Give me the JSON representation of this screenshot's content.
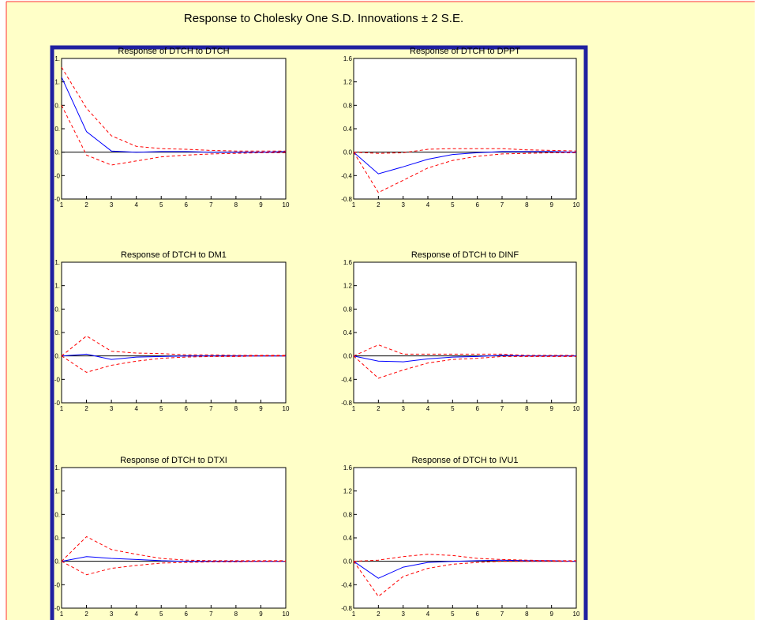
{
  "window": {
    "title": "Response to Cholesky One S.D. Innovations ± 2 S.E."
  },
  "colors": {
    "background": "#ffffc8",
    "frame": "#2020a0",
    "response_line": "#0000ff",
    "band_line": "#ff0000",
    "zero_line": "#000000",
    "top_rule": "#ff3030"
  },
  "chart_data": [
    {
      "type": "line",
      "title": "Response of DTCH to DTCH",
      "x": [
        1,
        2,
        3,
        4,
        5,
        6,
        7,
        8,
        9,
        10
      ],
      "ylim": [
        -0.8,
        1.6
      ],
      "yticks": [
        "-0",
        "-0",
        "0.",
        "0.",
        "0.",
        "1.",
        "1."
      ],
      "xticks": [
        "1",
        "2",
        "3",
        "4",
        "5",
        "6",
        "7",
        "8",
        "9",
        "10"
      ],
      "grid": false,
      "series": [
        {
          "role": "response",
          "values": [
            1.28,
            0.35,
            0.02,
            0.0,
            0.01,
            0.01,
            0.0,
            0.0,
            0.0,
            0.01
          ]
        },
        {
          "role": "upper",
          "values": [
            1.45,
            0.75,
            0.28,
            0.1,
            0.06,
            0.05,
            0.03,
            0.02,
            0.02,
            0.02
          ]
        },
        {
          "role": "lower",
          "values": [
            0.8,
            -0.05,
            -0.22,
            -0.15,
            -0.08,
            -0.05,
            -0.03,
            -0.02,
            -0.01,
            -0.01
          ]
        }
      ]
    },
    {
      "type": "line",
      "title": "Response of DTCH to DPPT",
      "x": [
        1,
        2,
        3,
        4,
        5,
        6,
        7,
        8,
        9,
        10
      ],
      "ylim": [
        -0.8,
        1.6
      ],
      "yticks": [
        "-0.8",
        "-0.4",
        "0.0",
        "0.4",
        "0.8",
        "1.2",
        "1.6"
      ],
      "xticks": [
        "1",
        "2",
        "3",
        "4",
        "5",
        "6",
        "7",
        "8",
        "9",
        "10"
      ],
      "grid": false,
      "series": [
        {
          "role": "response",
          "values": [
            0.0,
            -0.37,
            -0.25,
            -0.12,
            -0.04,
            -0.01,
            0.01,
            0.01,
            0.01,
            0.0
          ]
        },
        {
          "role": "upper",
          "values": [
            0.0,
            -0.02,
            -0.01,
            0.05,
            0.06,
            0.06,
            0.06,
            0.04,
            0.03,
            0.02
          ]
        },
        {
          "role": "lower",
          "values": [
            0.0,
            -0.69,
            -0.48,
            -0.27,
            -0.14,
            -0.07,
            -0.03,
            -0.02,
            -0.01,
            -0.01
          ]
        }
      ]
    },
    {
      "type": "line",
      "title": "Response of DTCH to DM1",
      "x": [
        1,
        2,
        3,
        4,
        5,
        6,
        7,
        8,
        9,
        10
      ],
      "ylim": [
        -0.8,
        1.6
      ],
      "yticks": [
        "-0",
        "-0",
        "0.",
        "0.",
        "0.",
        "1.",
        "1."
      ],
      "xticks": [
        "1",
        "2",
        "3",
        "4",
        "5",
        "6",
        "7",
        "8",
        "9",
        "10"
      ],
      "grid": false,
      "series": [
        {
          "role": "response",
          "values": [
            0.0,
            0.03,
            -0.06,
            -0.02,
            -0.01,
            0.0,
            0.0,
            0.0,
            0.0,
            0.0
          ]
        },
        {
          "role": "upper",
          "values": [
            0.0,
            0.34,
            0.08,
            0.05,
            0.04,
            0.02,
            0.02,
            0.01,
            0.01,
            0.01
          ]
        },
        {
          "role": "lower",
          "values": [
            0.0,
            -0.28,
            -0.16,
            -0.09,
            -0.04,
            -0.02,
            -0.01,
            -0.01,
            0.0,
            0.0
          ]
        }
      ]
    },
    {
      "type": "line",
      "title": "Response of DTCH to DINF",
      "x": [
        1,
        2,
        3,
        4,
        5,
        6,
        7,
        8,
        9,
        10
      ],
      "ylim": [
        -0.8,
        1.6
      ],
      "yticks": [
        "-0.8",
        "-0.4",
        "0.0",
        "0.4",
        "0.8",
        "1.2",
        "1.6"
      ],
      "xticks": [
        "1",
        "2",
        "3",
        "4",
        "5",
        "6",
        "7",
        "8",
        "9",
        "10"
      ],
      "grid": false,
      "series": [
        {
          "role": "response",
          "values": [
            0.0,
            -0.09,
            -0.1,
            -0.05,
            -0.02,
            -0.01,
            0.01,
            0.0,
            0.0,
            0.0
          ]
        },
        {
          "role": "upper",
          "values": [
            0.0,
            0.19,
            0.03,
            0.03,
            0.03,
            0.03,
            0.03,
            0.01,
            0.01,
            0.01
          ]
        },
        {
          "role": "lower",
          "values": [
            0.0,
            -0.38,
            -0.24,
            -0.12,
            -0.06,
            -0.04,
            -0.01,
            -0.01,
            -0.01,
            -0.01
          ]
        }
      ]
    },
    {
      "type": "line",
      "title": "Response of DTCH to DTXI",
      "x": [
        1,
        2,
        3,
        4,
        5,
        6,
        7,
        8,
        9,
        10
      ],
      "ylim": [
        -0.8,
        1.6
      ],
      "yticks": [
        "-0",
        "-0",
        "0.",
        "0.",
        "0.",
        "1.",
        "1."
      ],
      "xticks": [
        "1",
        "2",
        "3",
        "4",
        "5",
        "6",
        "7",
        "8",
        "9",
        "10"
      ],
      "grid": false,
      "series": [
        {
          "role": "response",
          "values": [
            0.0,
            0.08,
            0.05,
            0.03,
            0.01,
            0.0,
            0.0,
            0.0,
            0.0,
            0.0
          ]
        },
        {
          "role": "upper",
          "values": [
            0.0,
            0.42,
            0.2,
            0.12,
            0.05,
            0.02,
            0.01,
            0.01,
            0.01,
            0.01
          ]
        },
        {
          "role": "lower",
          "values": [
            0.0,
            -0.23,
            -0.12,
            -0.07,
            -0.03,
            -0.02,
            -0.01,
            -0.01,
            0.0,
            0.0
          ]
        }
      ]
    },
    {
      "type": "line",
      "title": "Response of DTCH to IVU1",
      "x": [
        1,
        2,
        3,
        4,
        5,
        6,
        7,
        8,
        9,
        10
      ],
      "ylim": [
        -0.8,
        1.6
      ],
      "yticks": [
        "-0.8",
        "-0.4",
        "0.0",
        "0.4",
        "0.8",
        "1.2",
        "1.6"
      ],
      "xticks": [
        "1",
        "2",
        "3",
        "4",
        "5",
        "6",
        "7",
        "8",
        "9",
        "10"
      ],
      "grid": false,
      "series": [
        {
          "role": "response",
          "values": [
            0.0,
            -0.29,
            -0.1,
            -0.02,
            0.0,
            0.01,
            0.02,
            0.01,
            0.01,
            0.0
          ]
        },
        {
          "role": "upper",
          "values": [
            0.0,
            0.02,
            0.08,
            0.12,
            0.1,
            0.05,
            0.03,
            0.02,
            0.01,
            0.01
          ]
        },
        {
          "role": "lower",
          "values": [
            0.0,
            -0.6,
            -0.26,
            -0.12,
            -0.05,
            -0.02,
            0.0,
            0.0,
            0.0,
            0.0
          ]
        }
      ]
    }
  ]
}
